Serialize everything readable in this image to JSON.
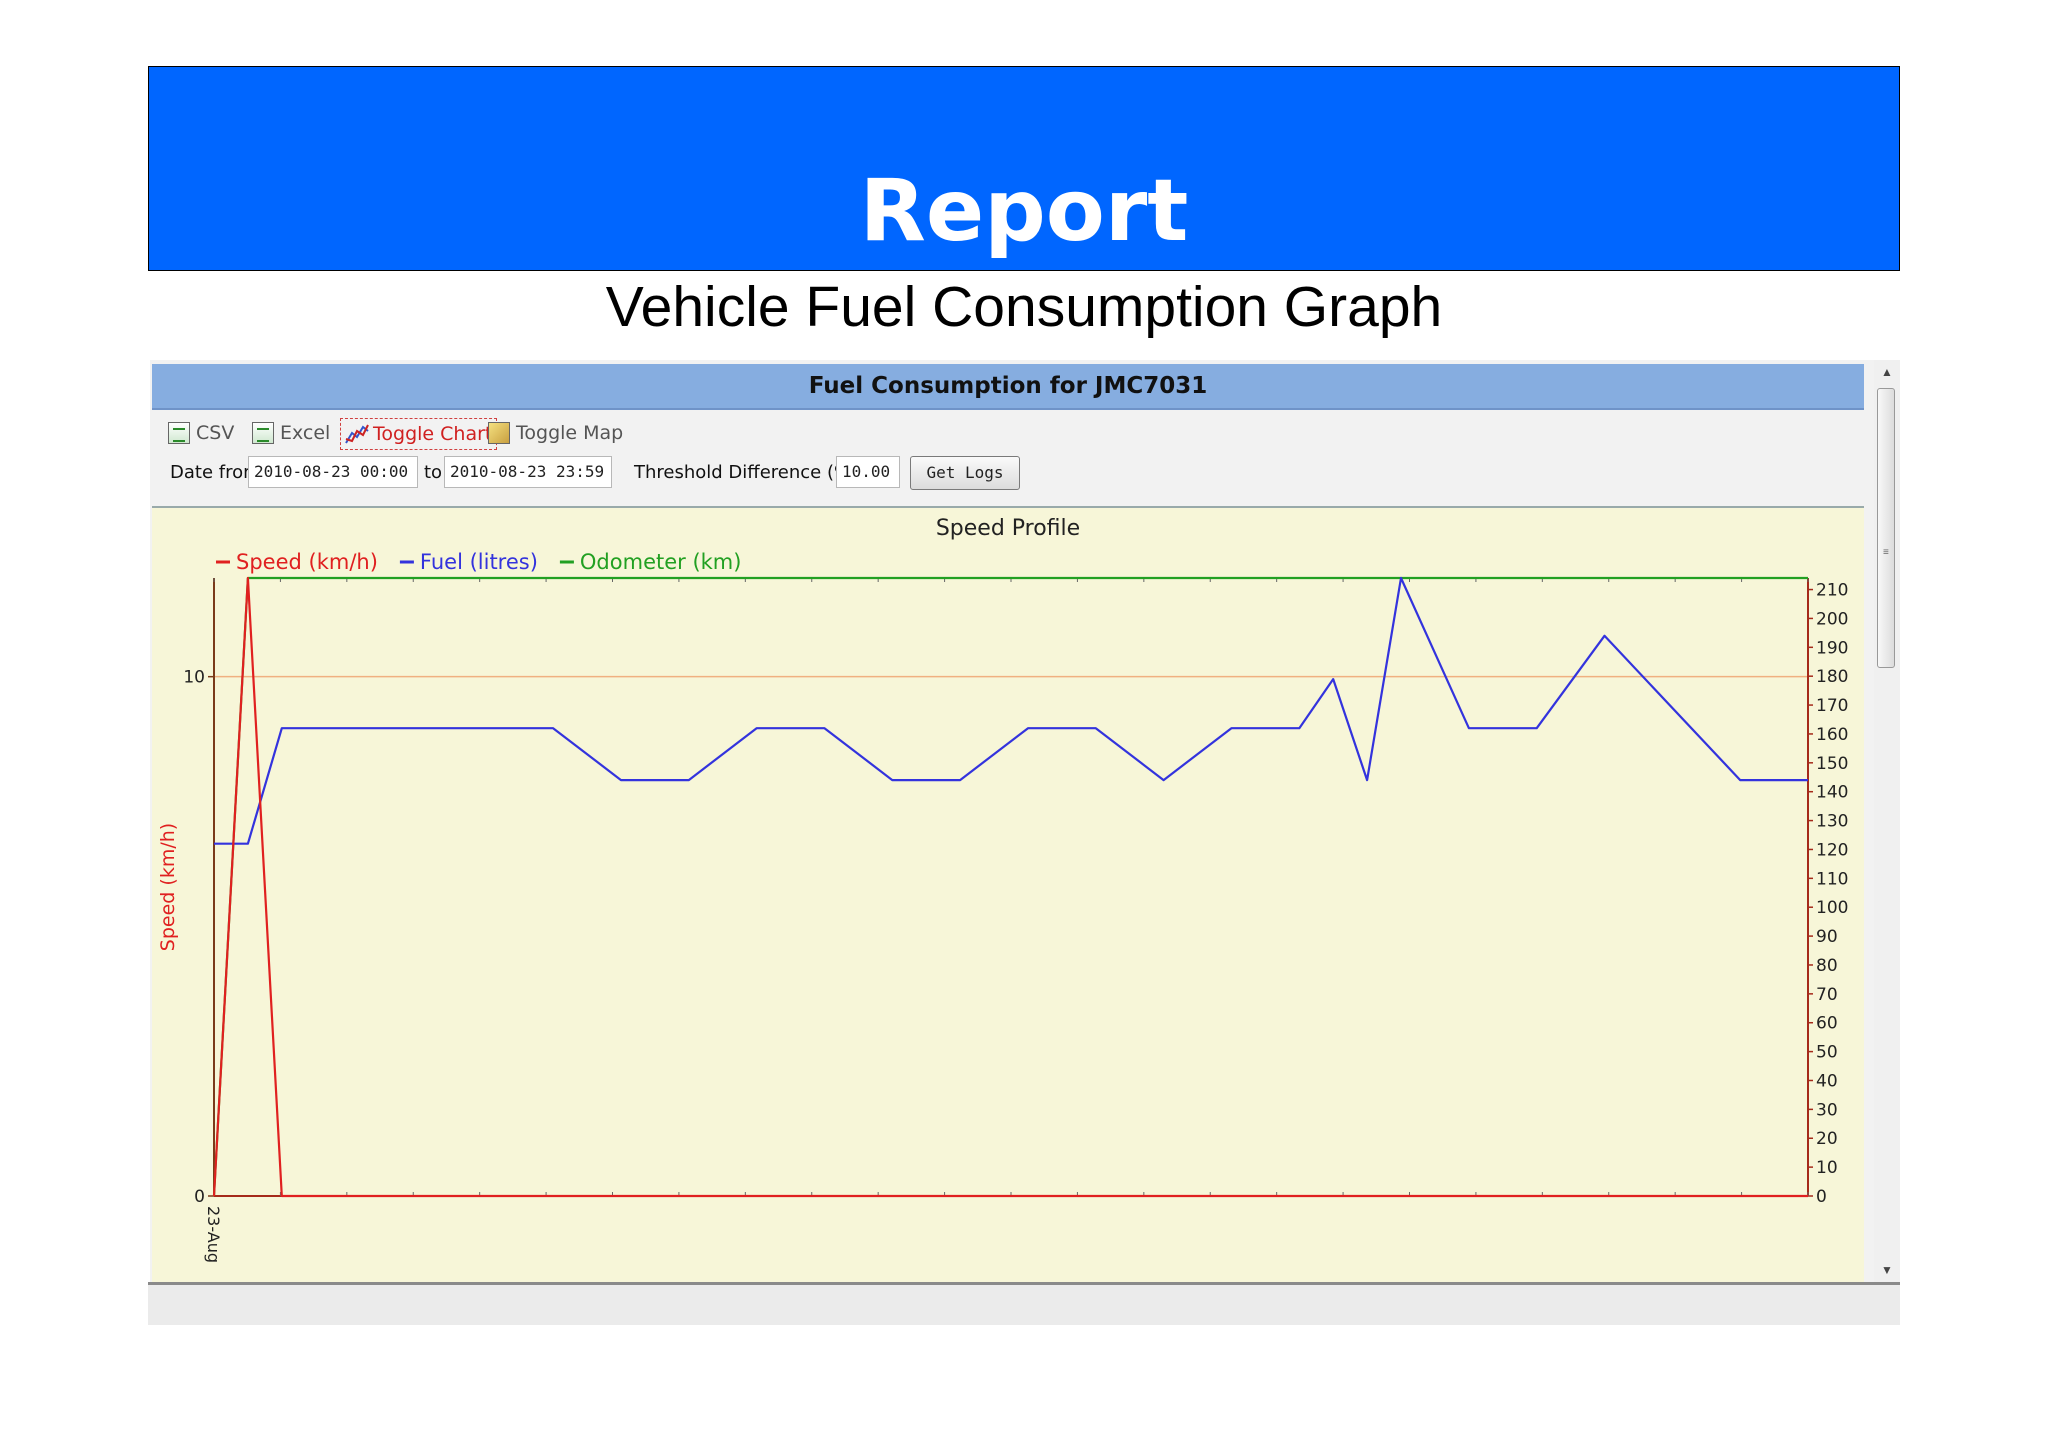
{
  "slide": {
    "title": "Report",
    "subtitle": "Vehicle Fuel Consumption Graph"
  },
  "panel": {
    "title": "Fuel Consumption for JMC7031"
  },
  "toolbar": {
    "csv_label": "CSV",
    "excel_label": "Excel",
    "toggle_chart_label": "Toggle Chart",
    "toggle_map_label": "Toggle Map",
    "icons": [
      "csv-icon",
      "excel-icon",
      "chart-icon",
      "map-icon"
    ]
  },
  "filters": {
    "date_from_label": "Date from",
    "date_from_value": "2010-08-23 00:00",
    "to_label": "to",
    "date_to_value": "2010-08-23 23:59",
    "threshold_label": "Threshold Difference (%):",
    "threshold_value": "10.00",
    "get_logs_label": "Get Logs"
  },
  "chart_data": {
    "type": "line",
    "title": "Speed Profile",
    "ylabel": "Speed (km/h)",
    "ylim": [
      0,
      11.9
    ],
    "y_ticks": [
      "0",
      "10"
    ],
    "y2lim": [
      0,
      214
    ],
    "y2_ticks": [
      "0",
      "10",
      "20",
      "30",
      "40",
      "50",
      "60",
      "70",
      "80",
      "90",
      "100",
      "110",
      "120",
      "130",
      "140",
      "150",
      "160",
      "170",
      "180",
      "190",
      "200",
      "210"
    ],
    "x_tick_label": "23-Aug",
    "x_tick_count": 25,
    "legend_position": "top-left",
    "colors": {
      "speed": "#e02020",
      "fuel": "#3333dd",
      "odometer": "#22a022",
      "threshold": "#f0b080",
      "left_axis": "#7a3a1a",
      "right_axis": "#a52a1a"
    },
    "series": [
      {
        "name": "Speed (km/h)",
        "x": [
          0,
          1,
          2,
          47
        ],
        "y": [
          0,
          11.9,
          0,
          0
        ]
      },
      {
        "name": "Fuel (litres)",
        "x": [
          0,
          1,
          2,
          4,
          6,
          8,
          10,
          12,
          14,
          16,
          18,
          20,
          22,
          24,
          26,
          28,
          30,
          32,
          33,
          34,
          35,
          37,
          39,
          41,
          45,
          47
        ],
        "y": [
          122,
          122,
          162,
          162,
          162,
          162,
          162,
          144,
          144,
          162,
          162,
          144,
          144,
          162,
          162,
          144,
          162,
          162,
          179,
          144,
          214,
          162,
          162,
          194,
          144,
          144
        ]
      },
      {
        "name": "Odometer (km)",
        "x": [
          0,
          1,
          47
        ],
        "y": [
          0,
          214,
          214
        ]
      }
    ]
  }
}
